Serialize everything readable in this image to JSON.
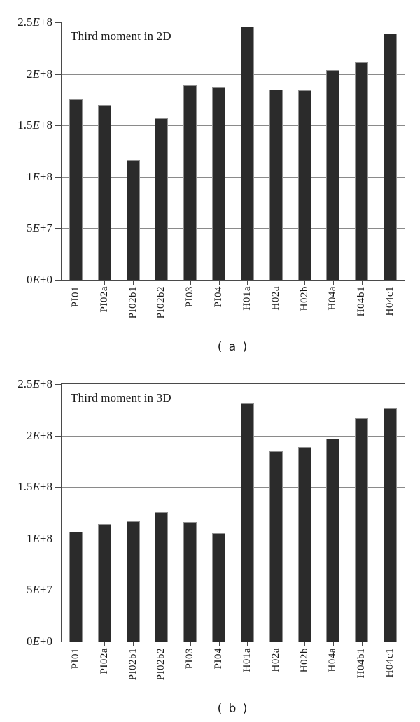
{
  "figure": {
    "background": "#ffffff",
    "colors": {
      "bar": "#2b2b2b",
      "bar_edge": "#909090",
      "grid": "#8a8a8a",
      "spine": "#4a4a4a",
      "text": "#1a1a1a"
    }
  },
  "chart_data": [
    {
      "type": "bar",
      "title": "Third moment in 2D",
      "caption": "( a )",
      "categories": [
        "PI01",
        "PI02a",
        "PI02b1",
        "PI02b2",
        "PI03",
        "PI04",
        "H01a",
        "H02a",
        "H02b",
        "H04a",
        "H04b1",
        "H04c1"
      ],
      "values": [
        175000000,
        170000000,
        116000000,
        157000000,
        189000000,
        187000000,
        246000000,
        185000000,
        184000000,
        204000000,
        211000000,
        239000000
      ],
      "ylim": [
        0,
        250000000
      ],
      "yticks": [
        {
          "value": 0,
          "label": "0E+0"
        },
        {
          "value": 50000000,
          "label": "5E+7"
        },
        {
          "value": 100000000,
          "label": "1E+8"
        },
        {
          "value": 150000000,
          "label": "1.5E+8"
        },
        {
          "value": 200000000,
          "label": "2E+8"
        },
        {
          "value": 250000000,
          "label": "2.5E+8"
        }
      ],
      "grid": true,
      "legend": false,
      "xlabel": "",
      "ylabel": ""
    },
    {
      "type": "bar",
      "title": "Third moment in 3D",
      "caption": "( b )",
      "categories": [
        "PI01",
        "PI02a",
        "PI02b1",
        "PI02b2",
        "PI03",
        "PI04",
        "H01a",
        "H02a",
        "H02b",
        "H04a",
        "H04b1",
        "H04c1"
      ],
      "values": [
        107000000,
        114000000,
        117000000,
        126000000,
        116000000,
        105000000,
        232000000,
        185000000,
        189000000,
        197000000,
        217000000,
        227000000
      ],
      "ylim": [
        0,
        250000000
      ],
      "yticks": [
        {
          "value": 0,
          "label": "0E+0"
        },
        {
          "value": 50000000,
          "label": "5E+7"
        },
        {
          "value": 100000000,
          "label": "1E+8"
        },
        {
          "value": 150000000,
          "label": "1.5E+8"
        },
        {
          "value": 200000000,
          "label": "2E+8"
        },
        {
          "value": 250000000,
          "label": "2.5E+8"
        }
      ],
      "grid": true,
      "legend": false,
      "xlabel": "",
      "ylabel": ""
    }
  ]
}
